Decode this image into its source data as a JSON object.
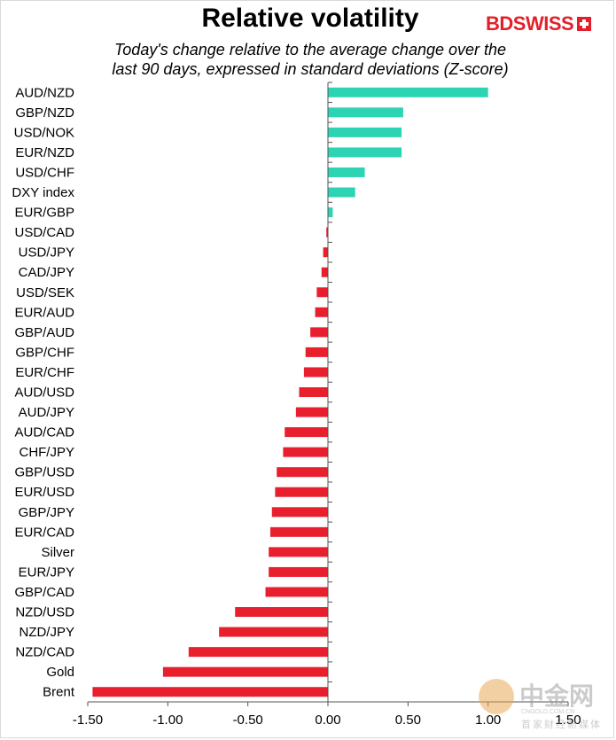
{
  "header": {
    "title": "Relative volatility",
    "subtitle_line1": "Today's change relative to the  average change over the",
    "subtitle_line2": "last 90 days, expressed in standard deviations (Z-score)",
    "logo_text": "BDSWISS"
  },
  "watermark": {
    "brand": "中金网",
    "url": "CNGOLD.COM.CN",
    "tagline": "首家财经新媒体"
  },
  "colors": {
    "positive": "#2dd4b4",
    "negative": "#e8202e"
  },
  "chart_data": {
    "type": "bar",
    "orientation": "horizontal",
    "title": "Relative volatility",
    "subtitle": "Today's change relative to the  average change over the last 90 days, expressed in standard deviations (Z-score)",
    "categories": [
      "AUD/NZD",
      "GBP/NZD",
      "USD/NOK",
      "EUR/NZD",
      "USD/CHF",
      "DXY index",
      "EUR/GBP",
      "USD/CAD",
      "USD/JPY",
      "CAD/JPY",
      "USD/SEK",
      "EUR/AUD",
      "GBP/AUD",
      "GBP/CHF",
      "EUR/CHF",
      "AUD/USD",
      "AUD/JPY",
      "AUD/CAD",
      "CHF/JPY",
      "GBP/USD",
      "EUR/USD",
      "GBP/JPY",
      "EUR/CAD",
      "Silver",
      "EUR/JPY",
      "GBP/CAD",
      "NZD/USD",
      "NZD/JPY",
      "NZD/CAD",
      "Gold",
      "Brent"
    ],
    "values": [
      1.0,
      0.47,
      0.46,
      0.46,
      0.23,
      0.17,
      0.03,
      -0.01,
      -0.03,
      -0.04,
      -0.07,
      -0.08,
      -0.11,
      -0.14,
      -0.15,
      -0.18,
      -0.2,
      -0.27,
      -0.28,
      -0.32,
      -0.33,
      -0.35,
      -0.36,
      -0.37,
      -0.37,
      -0.39,
      -0.58,
      -0.68,
      -0.87,
      -1.03,
      -1.47
    ],
    "xlim": [
      -1.5,
      1.5
    ],
    "xticks": [
      "-1.50",
      "-1.00",
      "-0.50",
      "0.00",
      "0.50",
      "1.00",
      "1.50"
    ],
    "xtick_values": [
      -1.5,
      -1.0,
      -0.5,
      0.0,
      0.5,
      1.0,
      1.5
    ],
    "grid": false,
    "legend": "none"
  }
}
